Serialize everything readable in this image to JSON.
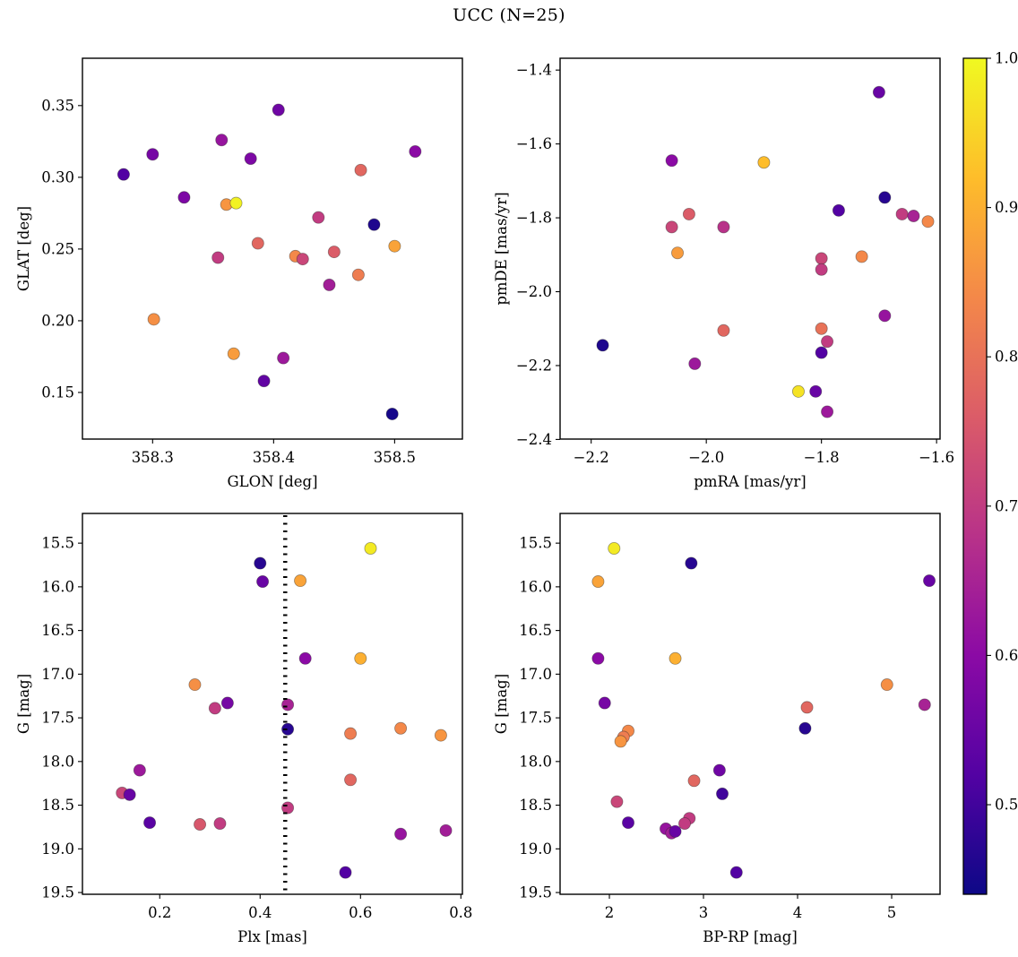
{
  "title": "UCC (N=25)",
  "colormap": {
    "name": "plasma",
    "stops": [
      [
        0.0,
        "#0d0887"
      ],
      [
        0.1429,
        "#5302a3"
      ],
      [
        0.2857,
        "#8b0aa5"
      ],
      [
        0.4286,
        "#b83289"
      ],
      [
        0.5714,
        "#db5c68"
      ],
      [
        0.7143,
        "#f48849"
      ],
      [
        0.8571,
        "#febd2a"
      ],
      [
        1.0,
        "#f0f921"
      ]
    ]
  },
  "colorbar": {
    "vmin": 0.44,
    "vmax": 1.0,
    "ticks": [
      1.0,
      0.9,
      0.8,
      0.7,
      0.6,
      0.5
    ],
    "tick_labels": [
      "1.0",
      "0.9",
      "0.8",
      "0.7",
      "0.6",
      "0.5"
    ]
  },
  "point_format": [
    "x",
    "y",
    "c"
  ],
  "chart_data": [
    {
      "type": "scatter",
      "name": "glon-glat",
      "xlabel": "GLON [deg]",
      "ylabel": "GLAT [deg]",
      "xlim": [
        358.242,
        358.556
      ],
      "ylim_top": 0.383,
      "ylim_bottom": 0.1175,
      "xticks": [
        358.3,
        358.4,
        358.5
      ],
      "xtick_labels": [
        "358.3",
        "358.4",
        "358.5"
      ],
      "yticks": [
        0.15,
        0.2,
        0.25,
        0.3,
        0.35
      ],
      "ytick_labels": [
        "0.15",
        "0.20",
        "0.25",
        "0.30",
        "0.35"
      ],
      "points": [
        [
          358.276,
          0.302,
          0.52
        ],
        [
          358.3,
          0.316,
          0.57
        ],
        [
          358.301,
          0.201,
          0.85
        ],
        [
          358.326,
          0.286,
          0.58
        ],
        [
          358.357,
          0.326,
          0.62
        ],
        [
          358.354,
          0.244,
          0.7
        ],
        [
          358.361,
          0.281,
          0.86
        ],
        [
          358.369,
          0.282,
          0.99
        ],
        [
          358.367,
          0.177,
          0.87
        ],
        [
          358.381,
          0.313,
          0.58
        ],
        [
          358.387,
          0.254,
          0.78
        ],
        [
          358.404,
          0.347,
          0.56
        ],
        [
          358.392,
          0.158,
          0.54
        ],
        [
          358.408,
          0.174,
          0.63
        ],
        [
          358.418,
          0.245,
          0.84
        ],
        [
          358.424,
          0.243,
          0.72
        ],
        [
          358.437,
          0.272,
          0.7
        ],
        [
          358.446,
          0.225,
          0.64
        ],
        [
          358.45,
          0.248,
          0.76
        ],
        [
          358.47,
          0.232,
          0.82
        ],
        [
          358.472,
          0.305,
          0.78
        ],
        [
          358.483,
          0.267,
          0.46
        ],
        [
          358.5,
          0.252,
          0.88
        ],
        [
          358.498,
          0.135,
          0.45
        ],
        [
          358.517,
          0.318,
          0.6
        ]
      ]
    },
    {
      "type": "scatter",
      "name": "pmra-pmde",
      "xlabel": "pmRA [mas/yr]",
      "ylabel": "pmDE [mas/yr]",
      "xlim": [
        -2.254,
        -1.594
      ],
      "ylim_top": -1.368,
      "ylim_bottom": -2.399,
      "xticks": [
        -2.2,
        -2.0,
        -1.8,
        -1.6
      ],
      "xtick_labels": [
        "−2.2",
        "−2.0",
        "−1.8",
        "−1.6"
      ],
      "yticks": [
        -1.4,
        -1.6,
        -1.8,
        -2.0,
        -2.2,
        -2.4
      ],
      "ytick_labels": [
        "−1.4",
        "−1.6",
        "−1.8",
        "−2.0",
        "−2.2",
        "−2.4"
      ],
      "points": [
        [
          -1.7,
          -1.46,
          0.55
        ],
        [
          -2.06,
          -1.645,
          0.6
        ],
        [
          -1.9,
          -1.65,
          0.92
        ],
        [
          -1.69,
          -1.745,
          0.47
        ],
        [
          -1.66,
          -1.79,
          0.7
        ],
        [
          -1.64,
          -1.795,
          0.65
        ],
        [
          -1.77,
          -1.78,
          0.52
        ],
        [
          -2.03,
          -1.79,
          0.76
        ],
        [
          -2.06,
          -1.825,
          0.72
        ],
        [
          -1.97,
          -1.825,
          0.68
        ],
        [
          -1.615,
          -1.81,
          0.84
        ],
        [
          -2.05,
          -1.895,
          0.87
        ],
        [
          -1.8,
          -1.91,
          0.72
        ],
        [
          -1.8,
          -1.94,
          0.7
        ],
        [
          -1.73,
          -1.905,
          0.84
        ],
        [
          -1.97,
          -2.105,
          0.78
        ],
        [
          -2.02,
          -2.195,
          0.63
        ],
        [
          -2.18,
          -2.145,
          0.46
        ],
        [
          -1.8,
          -2.1,
          0.8
        ],
        [
          -1.79,
          -2.135,
          0.7
        ],
        [
          -1.8,
          -2.165,
          0.52
        ],
        [
          -1.69,
          -2.065,
          0.62
        ],
        [
          -1.84,
          -2.27,
          0.97
        ],
        [
          -1.81,
          -2.27,
          0.55
        ],
        [
          -1.79,
          -2.325,
          0.63
        ]
      ]
    },
    {
      "type": "scatter",
      "name": "plx-g",
      "xlabel": "Plx [mas]",
      "ylabel": "G [mag]",
      "xlim": [
        0.046,
        0.803
      ],
      "ylim_top": 15.16,
      "ylim_bottom": 19.52,
      "xticks": [
        0.2,
        0.4,
        0.6,
        0.8
      ],
      "xtick_labels": [
        "0.2",
        "0.4",
        "0.6",
        "0.8"
      ],
      "yticks": [
        15.5,
        16.0,
        16.5,
        17.0,
        17.5,
        18.0,
        18.5,
        19.0,
        19.5
      ],
      "ytick_labels": [
        "15.5",
        "16.0",
        "16.5",
        "17.0",
        "17.5",
        "18.0",
        "18.5",
        "19.0",
        "19.5"
      ],
      "vline": {
        "x": 0.45,
        "style": "dotted",
        "color": "#000000"
      },
      "points": [
        [
          0.4,
          15.73,
          0.47
        ],
        [
          0.405,
          15.94,
          0.55
        ],
        [
          0.48,
          15.93,
          0.88
        ],
        [
          0.62,
          15.56,
          0.98
        ],
        [
          0.49,
          16.82,
          0.6
        ],
        [
          0.6,
          16.82,
          0.9
        ],
        [
          0.27,
          17.12,
          0.85
        ],
        [
          0.31,
          17.39,
          0.7
        ],
        [
          0.335,
          17.33,
          0.57
        ],
        [
          0.455,
          17.35,
          0.65
        ],
        [
          0.455,
          17.63,
          0.47
        ],
        [
          0.58,
          17.68,
          0.82
        ],
        [
          0.68,
          17.62,
          0.84
        ],
        [
          0.76,
          17.7,
          0.86
        ],
        [
          0.58,
          18.21,
          0.78
        ],
        [
          0.16,
          18.1,
          0.63
        ],
        [
          0.125,
          18.36,
          0.72
        ],
        [
          0.14,
          18.38,
          0.55
        ],
        [
          0.455,
          18.53,
          0.7
        ],
        [
          0.18,
          18.7,
          0.53
        ],
        [
          0.28,
          18.72,
          0.75
        ],
        [
          0.32,
          18.71,
          0.7
        ],
        [
          0.68,
          18.83,
          0.62
        ],
        [
          0.77,
          18.79,
          0.64
        ],
        [
          0.57,
          19.27,
          0.52
        ]
      ]
    },
    {
      "type": "scatter",
      "name": "bprp-g",
      "xlabel": "BP-RP [mag]",
      "ylabel": "G [mag]",
      "xlim": [
        1.476,
        5.514
      ],
      "ylim_top": 15.16,
      "ylim_bottom": 19.52,
      "xticks": [
        2,
        3,
        4,
        5
      ],
      "xtick_labels": [
        "2",
        "3",
        "4",
        "5"
      ],
      "yticks": [
        15.5,
        16.0,
        16.5,
        17.0,
        17.5,
        18.0,
        18.5,
        19.0,
        19.5
      ],
      "ytick_labels": [
        "15.5",
        "16.0",
        "16.5",
        "17.0",
        "17.5",
        "18.0",
        "18.5",
        "19.0",
        "19.5"
      ],
      "points": [
        [
          2.05,
          15.56,
          0.98
        ],
        [
          2.87,
          15.73,
          0.47
        ],
        [
          1.88,
          15.94,
          0.88
        ],
        [
          5.4,
          15.93,
          0.55
        ],
        [
          1.88,
          16.82,
          0.6
        ],
        [
          2.7,
          16.82,
          0.9
        ],
        [
          4.95,
          17.12,
          0.85
        ],
        [
          1.95,
          17.33,
          0.57
        ],
        [
          5.35,
          17.35,
          0.65
        ],
        [
          4.1,
          17.38,
          0.78
        ],
        [
          4.08,
          17.62,
          0.47
        ],
        [
          2.2,
          17.65,
          0.84
        ],
        [
          2.15,
          17.72,
          0.82
        ],
        [
          2.12,
          17.77,
          0.86
        ],
        [
          3.17,
          18.1,
          0.56
        ],
        [
          2.9,
          18.22,
          0.78
        ],
        [
          2.08,
          18.46,
          0.72
        ],
        [
          3.2,
          18.37,
          0.5
        ],
        [
          2.85,
          18.65,
          0.7
        ],
        [
          2.2,
          18.7,
          0.53
        ],
        [
          2.8,
          18.71,
          0.7
        ],
        [
          2.6,
          18.77,
          0.62
        ],
        [
          2.66,
          18.82,
          0.64
        ],
        [
          2.7,
          18.8,
          0.55
        ],
        [
          3.35,
          19.27,
          0.52
        ]
      ]
    }
  ]
}
